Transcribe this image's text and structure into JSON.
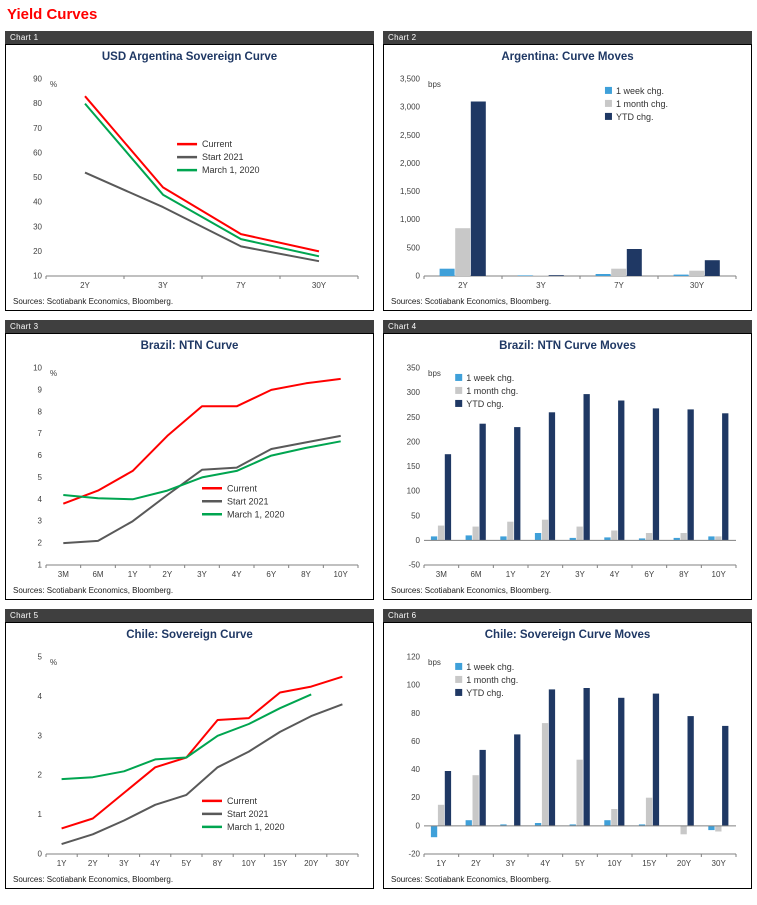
{
  "page_title": "Yield Curves",
  "sources_note": "Sources: Scotiabank Economics, Bloomberg.",
  "panels": [
    {
      "tab_label": "Chart 1"
    },
    {
      "tab_label": "Chart 2"
    },
    {
      "tab_label": "Chart 3"
    },
    {
      "tab_label": "Chart 4"
    },
    {
      "tab_label": "Chart 5"
    },
    {
      "tab_label": "Chart 6"
    }
  ],
  "colors": {
    "current": "#FF0000",
    "start_2021": "#595959",
    "march_2020": "#00A550",
    "week": "#3FA0D9",
    "month": "#C8C8C8",
    "ytd": "#1F3864",
    "title_text": "#1F3864",
    "tab_bg": "#3F3F3F",
    "axis": "#808080",
    "tick_text": "#404040"
  },
  "chart_data": [
    {
      "type": "line",
      "title": "USD Argentina Sovereign Curve",
      "unit_label": "%",
      "categories": [
        "2Y",
        "3Y",
        "7Y",
        "30Y"
      ],
      "ylim": [
        10,
        90
      ],
      "ytick_step": 10,
      "legend_pos": {
        "x": 0.42,
        "y": 0.3
      },
      "series": [
        {
          "name": "Current",
          "color_key": "current",
          "values": [
            83,
            46,
            27,
            20
          ]
        },
        {
          "name": "Start 2021",
          "color_key": "start_2021",
          "values": [
            52,
            38,
            22,
            16
          ]
        },
        {
          "name": "March 1, 2020",
          "color_key": "march_2020",
          "values": [
            80,
            43,
            25,
            18
          ]
        }
      ]
    },
    {
      "type": "bar",
      "title": "Argentina: Curve Moves",
      "unit_label": "bps",
      "categories": [
        "2Y",
        "3Y",
        "7Y",
        "30Y"
      ],
      "ylim": [
        0,
        3500
      ],
      "ytick_step": 500,
      "legend_pos": {
        "x": 0.58,
        "y": 0.03
      },
      "series": [
        {
          "name": "1 week chg.",
          "color_key": "week",
          "values": [
            130,
            10,
            35,
            25
          ]
        },
        {
          "name": "1 month chg.",
          "color_key": "month",
          "values": [
            850,
            10,
            130,
            95
          ]
        },
        {
          "name": "YTD chg.",
          "color_key": "ytd",
          "values": [
            3100,
            15,
            480,
            280
          ]
        }
      ]
    },
    {
      "type": "line",
      "title": "Brazil: NTN Curve",
      "unit_label": "%",
      "categories": [
        "3M",
        "6M",
        "1Y",
        "2Y",
        "3Y",
        "4Y",
        "6Y",
        "8Y",
        "10Y"
      ],
      "ylim": [
        1,
        10
      ],
      "ytick_step": 1,
      "legend_pos": {
        "x": 0.5,
        "y": 0.58
      },
      "series": [
        {
          "name": "Current",
          "color_key": "current",
          "values": [
            3.8,
            4.4,
            5.3,
            6.9,
            8.25,
            8.25,
            9.0,
            9.3,
            9.5
          ]
        },
        {
          "name": "Start 2021",
          "color_key": "start_2021",
          "values": [
            2.0,
            2.1,
            3.0,
            4.2,
            5.35,
            5.45,
            6.3,
            6.6,
            6.9
          ]
        },
        {
          "name": "March 1, 2020",
          "color_key": "march_2020",
          "values": [
            4.2,
            4.05,
            4.0,
            4.4,
            5.0,
            5.3,
            6.0,
            6.35,
            6.65
          ]
        }
      ]
    },
    {
      "type": "bar",
      "title": "Brazil: NTN Curve Moves",
      "unit_label": "bps",
      "categories": [
        "3M",
        "6M",
        "1Y",
        "2Y",
        "3Y",
        "4Y",
        "6Y",
        "8Y",
        "10Y"
      ],
      "ylim": [
        -50,
        350
      ],
      "ytick_step": 50,
      "legend_pos": {
        "x": 0.1,
        "y": 0.02
      },
      "series": [
        {
          "name": "1 week chg.",
          "color_key": "week",
          "values": [
            8,
            10,
            8,
            15,
            5,
            6,
            4,
            5,
            8
          ]
        },
        {
          "name": "1 month chg.",
          "color_key": "month",
          "values": [
            30,
            28,
            38,
            42,
            28,
            20,
            15,
            15,
            8
          ]
        },
        {
          "name": "YTD chg.",
          "color_key": "ytd",
          "values": [
            175,
            237,
            230,
            260,
            297,
            284,
            268,
            266,
            258
          ]
        }
      ]
    },
    {
      "type": "line",
      "title": "Chile: Sovereign Curve",
      "unit_label": "%",
      "categories": [
        "1Y",
        "2Y",
        "3Y",
        "4Y",
        "5Y",
        "8Y",
        "10Y",
        "15Y",
        "20Y",
        "30Y"
      ],
      "ylim": [
        0,
        5
      ],
      "ytick_step": 1,
      "legend_pos": {
        "x": 0.5,
        "y": 0.7
      },
      "series": [
        {
          "name": "Current",
          "color_key": "current",
          "values": [
            0.65,
            0.9,
            1.55,
            2.2,
            2.45,
            3.4,
            3.45,
            4.1,
            4.25,
            4.5
          ]
        },
        {
          "name": "Start 2021",
          "color_key": "start_2021",
          "values": [
            0.25,
            0.5,
            0.85,
            1.25,
            1.5,
            2.2,
            2.6,
            3.1,
            3.5,
            3.8
          ]
        },
        {
          "name": "March 1, 2020",
          "color_key": "march_2020",
          "values": [
            1.9,
            1.95,
            2.1,
            2.4,
            2.45,
            3.0,
            3.3,
            3.7,
            4.05,
            null
          ]
        }
      ]
    },
    {
      "type": "bar",
      "title": "Chile: Sovereign Curve Moves",
      "unit_label": "bps",
      "categories": [
        "1Y",
        "2Y",
        "3Y",
        "4Y",
        "5Y",
        "10Y",
        "15Y",
        "20Y",
        "30Y"
      ],
      "ylim": [
        -20,
        120
      ],
      "ytick_step": 20,
      "legend_pos": {
        "x": 0.1,
        "y": 0.02
      },
      "series": [
        {
          "name": "1 week chg.",
          "color_key": "week",
          "values": [
            -8,
            4,
            1,
            2,
            1,
            4,
            1,
            0,
            -3
          ]
        },
        {
          "name": "1 month chg.",
          "color_key": "month",
          "values": [
            15,
            36,
            0,
            73,
            47,
            12,
            20,
            -6,
            -4
          ]
        },
        {
          "name": "YTD chg.",
          "color_key": "ytd",
          "values": [
            39,
            54,
            65,
            97,
            98,
            91,
            94,
            78,
            71
          ]
        }
      ]
    }
  ]
}
